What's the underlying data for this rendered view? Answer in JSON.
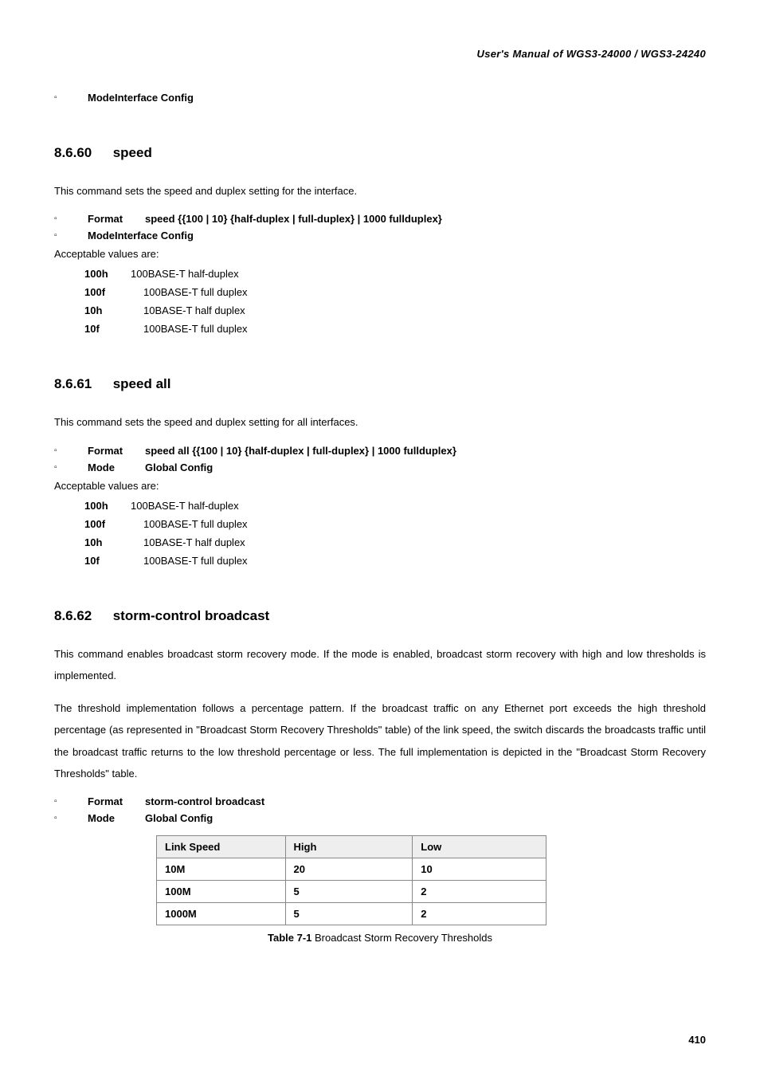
{
  "header": "User's  Manual  of  WGS3-24000  /  WGS3-24240",
  "topBullet": {
    "label": "Mode",
    "value": "Interface Config"
  },
  "sec60": {
    "num": "8.6.60",
    "title": "speed",
    "desc": "This command sets the speed and duplex setting for the interface.",
    "format": {
      "label": "Format",
      "value": "speed {{100 | 10} {half-duplex | full-duplex} | 1000 fullduplex}"
    },
    "mode": {
      "label": "Mode",
      "value": "Interface Config"
    },
    "acceptable": "Acceptable values are:",
    "values": [
      {
        "k": "100h",
        "d": "100BASE-T half-duplex",
        "indent": false
      },
      {
        "k": "100f",
        "d": "100BASE-T full duplex",
        "indent": true
      },
      {
        "k": "10h",
        "d": "10BASE-T half duplex",
        "indent": true
      },
      {
        "k": "10f",
        "d": "100BASE-T full duplex",
        "indent": true
      }
    ]
  },
  "sec61": {
    "num": "8.6.61",
    "title": "speed all",
    "desc": "This command sets the speed and duplex setting for all interfaces.",
    "format": {
      "label": "Format",
      "value": "speed all {{100 | 10} {half-duplex | full-duplex} | 1000 fullduplex}"
    },
    "mode": {
      "label": "Mode",
      "value": "Global Config"
    },
    "acceptable": "Acceptable values are:",
    "values": [
      {
        "k": "100h",
        "d": "100BASE-T half-duplex",
        "indent": false
      },
      {
        "k": "100f",
        "d": "100BASE-T full duplex",
        "indent": true
      },
      {
        "k": "10h",
        "d": "10BASE-T half duplex",
        "indent": true
      },
      {
        "k": "10f",
        "d": "100BASE-T full duplex",
        "indent": true
      }
    ]
  },
  "sec62": {
    "num": "8.6.62",
    "title": "storm-control broadcast",
    "desc1": "This command enables broadcast storm recovery mode. If the mode is enabled, broadcast storm recovery with high and low thresholds is implemented.",
    "desc2": "The threshold implementation follows a percentage pattern. If the broadcast traffic on any Ethernet port exceeds the high threshold percentage (as represented in \"Broadcast Storm Recovery Thresholds\" table) of the link speed, the switch discards the broadcasts traffic until the broadcast traffic returns to the low threshold percentage or less. The full implementation is depicted in the \"Broadcast Storm Recovery Thresholds\" table.",
    "format": {
      "label": "Format",
      "value": "storm-control broadcast"
    },
    "mode": {
      "label": "Mode",
      "value": "Global Config"
    },
    "table": {
      "columns": [
        "Link Speed",
        "High",
        "Low"
      ],
      "rows": [
        [
          "10M",
          "20",
          "10"
        ],
        [
          "100M",
          "5",
          "2"
        ],
        [
          "1000M",
          "5",
          "2"
        ]
      ],
      "col_widths": [
        "160px",
        "160px",
        "170px"
      ]
    },
    "caption_bold": "Table 7-1",
    "caption_rest": " Broadcast Storm Recovery Thresholds"
  },
  "pageNumber": "410"
}
